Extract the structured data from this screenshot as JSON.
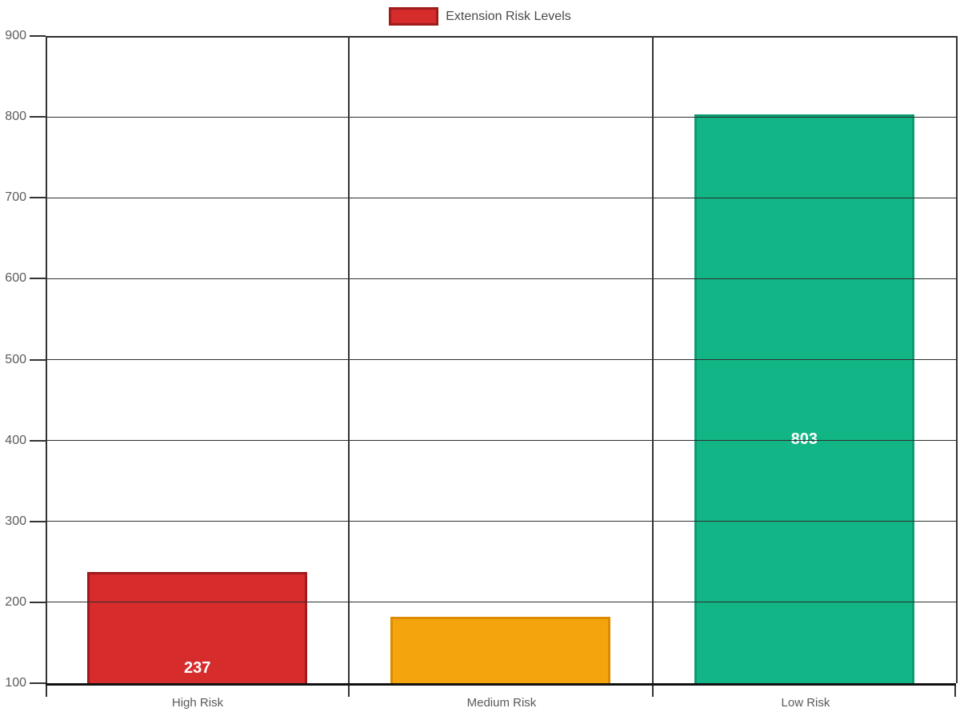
{
  "chart_data": {
    "type": "bar",
    "title": "Extension Risk Levels",
    "legend_label": "Extension Risk Levels",
    "legend_position": "top",
    "categories": [
      "High Risk",
      "Medium Risk",
      "Low Risk"
    ],
    "values": [
      237,
      182,
      803
    ],
    "value_labels": [
      "237",
      "",
      "803"
    ],
    "bar_fill_colors": [
      "#d62c2c",
      "#f4a40c",
      "#12b585"
    ],
    "bar_border_colors": [
      "#9e1c1c",
      "#de8a00",
      "#0c9c72"
    ],
    "xlabel": "",
    "ylabel": "",
    "y_axis": {
      "min": 100,
      "max": 900,
      "tick_step": 100,
      "tick_labels": [
        "900",
        "800",
        "700",
        "600",
        "500",
        "400",
        "300",
        "200",
        "100"
      ]
    },
    "grid": true
  },
  "colors": {
    "background": "#ffffff",
    "grid": "#2e2e2e",
    "axis": "#111111",
    "tick_text": "#5b5b5b",
    "legend_text": "#4a4a4a",
    "legend_swatch_fill": "#d62c2c",
    "legend_swatch_border": "#9e1c1c",
    "value_label_text": "#ffffff"
  }
}
